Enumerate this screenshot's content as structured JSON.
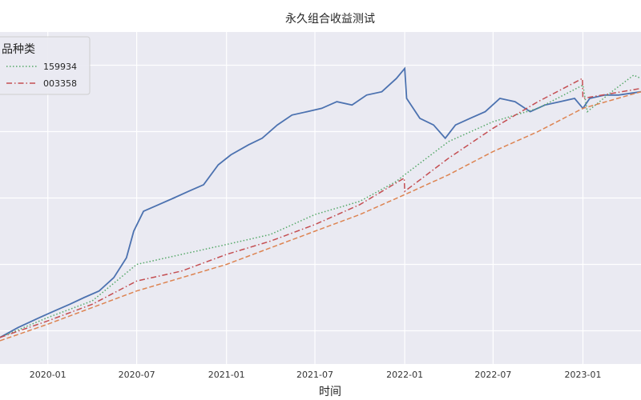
{
  "chart_data": {
    "type": "line",
    "title": "永久组合收益测试",
    "xlabel": "时间",
    "ylabel": "",
    "x_ticks": [
      "2020-01",
      "2020-07",
      "2021-01",
      "2021-07",
      "2022-01",
      "2022-07",
      "2023-01"
    ],
    "x_range": [
      "2019-09-25",
      "2023-04-30"
    ],
    "y_range": [
      0.9,
      1.9
    ],
    "grid": true,
    "legend": {
      "title": "品种类",
      "placement": "top-left",
      "entries": [
        {
          "label": "159934",
          "color": "#55a868",
          "dash": "dotted"
        },
        {
          "label": "003358",
          "color": "#c44e52",
          "dash": "dashdot"
        }
      ]
    },
    "series": [
      {
        "color": "#4c72b0",
        "style": "solid",
        "x": [
          "2019-09-25",
          "2019-11-01",
          "2019-12-15",
          "2020-01-15",
          "2020-02-15",
          "2020-03-15",
          "2020-04-15",
          "2020-05-15",
          "2020-06-10",
          "2020-06-25",
          "2020-07-15",
          "2020-08-15",
          "2020-09-15",
          "2020-10-15",
          "2020-11-15",
          "2020-12-15",
          "2021-01-10",
          "2021-02-15",
          "2021-03-15",
          "2021-04-15",
          "2021-05-15",
          "2021-06-15",
          "2021-07-15",
          "2021-08-15",
          "2021-09-15",
          "2021-10-15",
          "2021-11-15",
          "2021-12-15",
          "2022-01-01",
          "2022-01-05",
          "2022-02-01",
          "2022-03-01",
          "2022-03-25",
          "2022-04-15",
          "2022-05-15",
          "2022-06-15",
          "2022-07-15",
          "2022-08-15",
          "2022-09-15",
          "2022-10-15",
          "2022-11-15",
          "2022-12-15",
          "2023-01-01",
          "2023-01-15",
          "2023-02-15",
          "2023-03-15",
          "2023-04-30"
        ],
        "y": [
          0.98,
          1.01,
          1.04,
          1.06,
          1.08,
          1.1,
          1.12,
          1.16,
          1.22,
          1.3,
          1.36,
          1.38,
          1.4,
          1.42,
          1.44,
          1.5,
          1.53,
          1.56,
          1.58,
          1.62,
          1.65,
          1.66,
          1.67,
          1.69,
          1.68,
          1.71,
          1.72,
          1.76,
          1.79,
          1.7,
          1.64,
          1.62,
          1.58,
          1.62,
          1.64,
          1.66,
          1.7,
          1.69,
          1.66,
          1.68,
          1.69,
          1.7,
          1.67,
          1.7,
          1.71,
          1.71,
          1.72
        ]
      },
      {
        "name": "159934",
        "color": "#55a868",
        "style": "dotted",
        "x": [
          "2019-09-25",
          "2020-01-01",
          "2020-04-01",
          "2020-07-01",
          "2020-10-01",
          "2021-01-01",
          "2021-04-01",
          "2021-07-01",
          "2021-10-01",
          "2021-12-15",
          "2022-01-01",
          "2022-04-01",
          "2022-07-01",
          "2022-10-01",
          "2023-01-01",
          "2023-01-10",
          "2023-03-01",
          "2023-04-15",
          "2023-04-30"
        ],
        "y": [
          0.98,
          1.04,
          1.09,
          1.2,
          1.23,
          1.26,
          1.29,
          1.35,
          1.39,
          1.45,
          1.47,
          1.57,
          1.63,
          1.67,
          1.74,
          1.66,
          1.72,
          1.77,
          1.76
        ]
      },
      {
        "name": "003358",
        "color": "#c44e52",
        "style": "dashdot",
        "x": [
          "2019-09-25",
          "2020-01-01",
          "2020-04-01",
          "2020-07-01",
          "2020-10-01",
          "2021-01-01",
          "2021-04-01",
          "2021-07-01",
          "2021-10-01",
          "2021-12-31",
          "2022-01-01",
          "2022-04-01",
          "2022-07-01",
          "2022-10-01",
          "2022-12-31",
          "2023-01-01",
          "2023-04-30"
        ],
        "y": [
          0.98,
          1.03,
          1.08,
          1.15,
          1.18,
          1.23,
          1.27,
          1.32,
          1.38,
          1.46,
          1.42,
          1.52,
          1.61,
          1.69,
          1.76,
          1.7,
          1.73
        ]
      },
      {
        "color": "#dd8452",
        "style": "dashed",
        "x": [
          "2019-09-25",
          "2020-01-01",
          "2020-04-01",
          "2020-07-01",
          "2020-10-01",
          "2021-01-01",
          "2021-04-01",
          "2021-07-01",
          "2021-10-01",
          "2022-01-01",
          "2022-04-01",
          "2022-07-01",
          "2022-10-01",
          "2023-01-01",
          "2023-04-30"
        ],
        "y": [
          0.97,
          1.02,
          1.07,
          1.12,
          1.16,
          1.2,
          1.25,
          1.3,
          1.35,
          1.41,
          1.47,
          1.54,
          1.6,
          1.67,
          1.72
        ]
      }
    ]
  }
}
